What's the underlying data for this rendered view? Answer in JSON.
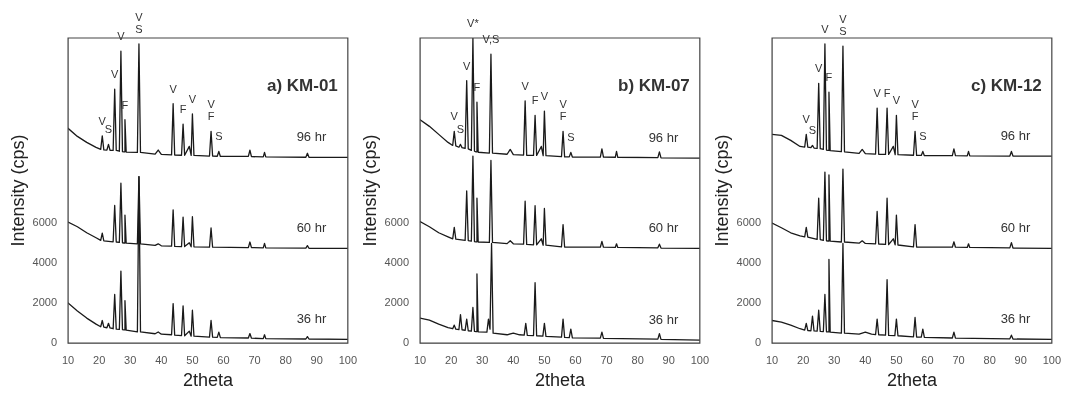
{
  "chart_data": [
    {
      "type": "line",
      "title": "a) KM-01",
      "xlabel": "2theta",
      "ylabel": "Intensity (cps)",
      "xlim": [
        10,
        100
      ],
      "xticks": [
        10,
        20,
        30,
        40,
        50,
        60,
        70,
        80,
        90,
        100
      ],
      "ylim": [
        0,
        15200
      ],
      "yticks": [
        0,
        2000,
        4000,
        6000
      ],
      "marker": "none",
      "series": [
        {
          "name": "36 hr",
          "color": "#1a1a1a",
          "x": [
            10,
            13,
            16,
            19,
            20.5,
            21,
            21.5,
            22.5,
            23,
            23.5,
            24.5,
            25,
            25.5,
            26.5,
            27,
            27.5,
            28,
            28.3,
            28.7,
            32.3,
            32.8,
            33.3,
            38,
            39,
            40,
            43.3,
            43.8,
            44.3,
            46.5,
            47,
            47.5,
            49,
            49.6,
            50,
            50.5,
            55.5,
            56,
            56.5,
            58,
            58.5,
            59,
            68,
            68.5,
            69,
            72.8,
            73.2,
            73.6,
            86.5,
            87,
            87.5,
            100
          ],
          "values": [
            2000,
            1600,
            1250,
            950,
            820,
            1130,
            800,
            770,
            990,
            760,
            720,
            2430,
            700,
            690,
            3590,
            680,
            660,
            2120,
            650,
            560,
            8300,
            560,
            470,
            560,
            450,
            420,
            1970,
            400,
            380,
            1860,
            370,
            600,
            350,
            1640,
            350,
            300,
            1130,
            300,
            290,
            550,
            280,
            260,
            480,
            250,
            230,
            420,
            230,
            210,
            330,
            210,
            190
          ]
        },
        {
          "name": "60 hr",
          "color": "#1a1a1a",
          "x": [
            10,
            13,
            16,
            19,
            20.5,
            21,
            21.5,
            24.5,
            25,
            25.5,
            26.5,
            27,
            27.5,
            28,
            28.3,
            28.7,
            32.3,
            32.8,
            33.3,
            38,
            39,
            40,
            43.3,
            43.8,
            44.3,
            46.5,
            47,
            47.5,
            49,
            49.6,
            50,
            50.5,
            55.5,
            56,
            56.5,
            68,
            68.5,
            69,
            72.8,
            73.2,
            73.6,
            86.5,
            87,
            87.5,
            100
          ],
          "values": [
            6030,
            5800,
            5500,
            5250,
            5120,
            5480,
            5100,
            5050,
            6860,
            5040,
            5020,
            7970,
            5000,
            4990,
            6380,
            4980,
            4950,
            8300,
            4950,
            4870,
            4950,
            4850,
            4830,
            6640,
            4820,
            4810,
            6280,
            4810,
            5000,
            4800,
            6300,
            4800,
            4780,
            5740,
            4780,
            4760,
            5040,
            4760,
            4750,
            4970,
            4750,
            4740,
            4860,
            4730,
            4720
          ]
        },
        {
          "name": "96 hr",
          "color": "#1a1a1a",
          "x": [
            10,
            13,
            16,
            19,
            20.5,
            21,
            21.5,
            22.5,
            23,
            23.5,
            24.5,
            25,
            25.5,
            26.5,
            27,
            27.5,
            28,
            28.3,
            28.7,
            32.3,
            32.8,
            33.3,
            38,
            39,
            40,
            43.3,
            43.8,
            44.3,
            46.5,
            47,
            47.5,
            49,
            49.6,
            50,
            50.5,
            55.5,
            56,
            56.5,
            58,
            58.5,
            59,
            68,
            68.5,
            69,
            72.8,
            73.2,
            73.6,
            86.5,
            87,
            87.5,
            100
          ],
          "values": [
            10700,
            10300,
            10000,
            9750,
            9650,
            10330,
            9630,
            9620,
            9900,
            9610,
            9600,
            12650,
            9600,
            9560,
            14540,
            9540,
            9530,
            11130,
            9520,
            9500,
            14900,
            9500,
            9420,
            9620,
            9400,
            9380,
            11930,
            9370,
            9360,
            10910,
            9360,
            9800,
            9350,
            11420,
            9350,
            9320,
            10550,
            9320,
            9310,
            9550,
            9300,
            9300,
            9610,
            9290,
            9280,
            9500,
            9280,
            9260,
            9460,
            9260,
            9250
          ]
        }
      ],
      "annotations": [
        {
          "text": "V",
          "x": 21,
          "y": 10330
        },
        {
          "text": "S",
          "x": 23,
          "y": 9900
        },
        {
          "text": "V",
          "x": 25,
          "y": 12650
        },
        {
          "text": "V",
          "x": 27,
          "y": 14540
        },
        {
          "text": "F",
          "x": 28.3,
          "y": 11130
        },
        {
          "text": "S",
          "x": 32.8,
          "y": 14900
        },
        {
          "text": "V",
          "x": 32.8,
          "y": 14900
        },
        {
          "text": "V",
          "x": 43.8,
          "y": 11930
        },
        {
          "text": "F",
          "x": 47,
          "y": 10910
        },
        {
          "text": "V",
          "x": 50,
          "y": 11420
        },
        {
          "text": "F",
          "x": 56,
          "y": 10550
        },
        {
          "text": "V",
          "x": 56,
          "y": 10550
        },
        {
          "text": "S",
          "x": 58.5,
          "y": 9550
        }
      ]
    },
    {
      "type": "line",
      "title": "b) KM-07",
      "xlabel": "2theta",
      "ylabel": "Intensity (cps)",
      "xlim": [
        10,
        100
      ],
      "xticks": [
        10,
        20,
        30,
        40,
        50,
        60,
        70,
        80,
        90,
        100
      ],
      "ylim": [
        0,
        15200
      ],
      "yticks": [
        0,
        2000,
        4000,
        6000
      ],
      "marker": "none",
      "series": [
        {
          "name": "36 hr",
          "color": "#1a1a1a",
          "x": [
            10,
            13,
            16,
            19,
            20.5,
            21,
            21.5,
            22.5,
            23,
            23.5,
            24.5,
            25,
            25.5,
            26.5,
            27,
            27.5,
            28,
            28.3,
            28.7,
            31.5,
            32,
            32.5,
            33,
            33.5,
            38,
            40,
            42,
            43.5,
            44,
            44.5,
            46.5,
            47,
            47.5,
            49.5,
            50,
            50.5,
            55.5,
            56,
            56.5,
            58,
            58.5,
            59,
            68,
            68.5,
            69,
            86.5,
            87,
            87.5,
            100
          ],
          "values": [
            1250,
            1150,
            950,
            780,
            720,
            900,
            700,
            680,
            1420,
            670,
            640,
            1200,
            620,
            600,
            1780,
            590,
            580,
            3450,
            560,
            550,
            1200,
            700,
            4970,
            500,
            420,
            500,
            420,
            400,
            990,
            390,
            380,
            3010,
            370,
            350,
            990,
            340,
            300,
            1200,
            290,
            280,
            700,
            270,
            250,
            550,
            240,
            200,
            480,
            190,
            150
          ]
        },
        {
          "name": "60 hr",
          "color": "#1a1a1a",
          "x": [
            10,
            13,
            16,
            19,
            20.5,
            21,
            21.5,
            24.5,
            25,
            25.5,
            26.5,
            27,
            27.5,
            28,
            28.3,
            28.7,
            32.3,
            32.8,
            33.3,
            38,
            39,
            40,
            43.3,
            43.8,
            44.3,
            46.5,
            47,
            47.5,
            49,
            49.6,
            50,
            50.5,
            55.5,
            56,
            56.5,
            68,
            68.5,
            69,
            72.8,
            73.2,
            73.6,
            86.5,
            87,
            87.5,
            100
          ],
          "values": [
            6060,
            5800,
            5500,
            5300,
            5200,
            5770,
            5180,
            5120,
            7580,
            5110,
            5080,
            9320,
            5060,
            5050,
            7220,
            5040,
            5020,
            9100,
            5020,
            4960,
            5100,
            4950,
            4930,
            7070,
            4920,
            4900,
            6850,
            4900,
            5200,
            4880,
            6710,
            4880,
            4800,
            5910,
            4790,
            4780,
            5070,
            4780,
            4770,
            4950,
            4770,
            4750,
            4930,
            4740,
            4720
          ]
        },
        {
          "name": "96 hr",
          "color": "#1a1a1a",
          "x": [
            10,
            13,
            16,
            19,
            20.5,
            21,
            21.5,
            22.5,
            23,
            23.5,
            24.5,
            25,
            25.5,
            26.5,
            27,
            27.5,
            28,
            28.3,
            28.7,
            32.3,
            32.8,
            33.3,
            38,
            39,
            40,
            43.3,
            43.8,
            44.3,
            46.5,
            47,
            47.5,
            49,
            49.6,
            50,
            50.5,
            55.5,
            56,
            56.5,
            58,
            58.5,
            59,
            68,
            68.5,
            69,
            72.8,
            73.2,
            73.6,
            86.5,
            87,
            87.5,
            100
          ],
          "values": [
            11130,
            10800,
            10400,
            10000,
            9850,
            10550,
            9830,
            9760,
            9900,
            9740,
            9700,
            13080,
            9680,
            9600,
            15200,
            9560,
            9530,
            12000,
            9510,
            9470,
            14390,
            9470,
            9410,
            9650,
            9390,
            9370,
            12070,
            9360,
            9350,
            11350,
            9350,
            9800,
            9340,
            11560,
            9340,
            9290,
            10550,
            9280,
            9280,
            9500,
            9270,
            9270,
            9680,
            9270,
            9260,
            9550,
            9260,
            9240,
            9530,
            9230,
            9220
          ]
        }
      ],
      "annotations": [
        {
          "text": "V",
          "x": 21,
          "y": 10550
        },
        {
          "text": "S",
          "x": 23,
          "y": 9900
        },
        {
          "text": "V",
          "x": 25,
          "y": 13080
        },
        {
          "text": "V*",
          "x": 27,
          "y": 15200
        },
        {
          "text": "F",
          "x": 28.3,
          "y": 12000
        },
        {
          "text": "V,S",
          "x": 32.8,
          "y": 14390
        },
        {
          "text": "V",
          "x": 43.8,
          "y": 12070
        },
        {
          "text": "F",
          "x": 47,
          "y": 11350
        },
        {
          "text": "V",
          "x": 50,
          "y": 11560
        },
        {
          "text": "F",
          "x": 56,
          "y": 10550
        },
        {
          "text": "V",
          "x": 56,
          "y": 10550
        },
        {
          "text": "S",
          "x": 58.5,
          "y": 9500
        }
      ]
    },
    {
      "type": "line",
      "title": "c) KM-12",
      "xlabel": "2theta",
      "ylabel": "Intensity (cps)",
      "xlim": [
        10,
        100
      ],
      "xticks": [
        10,
        20,
        30,
        40,
        50,
        60,
        70,
        80,
        90,
        100
      ],
      "ylim": [
        0,
        15200
      ],
      "yticks": [
        0,
        2000,
        4000,
        6000
      ],
      "marker": "none",
      "series": [
        {
          "name": "36 hr",
          "color": "#1a1a1a",
          "x": [
            10,
            13,
            16,
            19,
            20.5,
            21,
            21.5,
            22.5,
            23,
            23.5,
            24.5,
            25,
            25.5,
            26.5,
            27,
            27.5,
            28,
            28.3,
            28.7,
            32.3,
            32.8,
            33.3,
            38,
            40,
            42,
            43.3,
            43.8,
            44.3,
            46.5,
            47,
            47.5,
            49.5,
            50,
            50.5,
            55.5,
            56,
            56.5,
            58,
            58.5,
            59,
            68,
            68.5,
            69,
            86.5,
            87,
            87.5,
            100
          ],
          "values": [
            1130,
            1050,
            900,
            720,
            650,
            990,
            630,
            620,
            1350,
            610,
            600,
            1640,
            590,
            580,
            2430,
            570,
            560,
            4170,
            550,
            500,
            4970,
            500,
            450,
            550,
            450,
            430,
            1200,
            420,
            400,
            3160,
            390,
            380,
            1200,
            370,
            320,
            1280,
            310,
            300,
            700,
            290,
            260,
            550,
            250,
            220,
            400,
            210,
            190
          ]
        },
        {
          "name": "60 hr",
          "color": "#1a1a1a",
          "x": [
            10,
            13,
            16,
            19,
            20.5,
            21,
            21.5,
            24.5,
            25,
            25.5,
            26.5,
            27,
            27.5,
            28,
            28.3,
            28.7,
            32.3,
            32.8,
            33.3,
            38,
            39,
            40,
            43.3,
            43.8,
            44.3,
            46.5,
            47,
            47.5,
            49,
            49.6,
            50,
            50.5,
            55.5,
            56,
            56.5,
            68,
            68.5,
            69,
            72.8,
            73.2,
            73.6,
            86.5,
            87,
            87.5,
            100
          ],
          "values": [
            5980,
            5750,
            5500,
            5350,
            5300,
            5770,
            5280,
            5170,
            7220,
            5160,
            5120,
            8520,
            5100,
            5090,
            8380,
            5080,
            5040,
            8670,
            5040,
            4980,
            5100,
            4970,
            4950,
            6560,
            4940,
            4920,
            7220,
            4910,
            5200,
            4900,
            6380,
            4890,
            4800,
            5910,
            4790,
            4780,
            5050,
            4780,
            4770,
            4950,
            4770,
            4750,
            5010,
            4740,
            4720
          ]
        },
        {
          "name": "96 hr",
          "color": "#1a1a1a",
          "x": [
            10,
            13,
            16,
            19,
            20.5,
            21,
            21.5,
            22.5,
            23,
            23.5,
            24.5,
            25,
            25.5,
            26.5,
            27,
            27.5,
            28,
            28.3,
            28.7,
            32.3,
            32.8,
            33.3,
            38,
            39,
            40,
            43.3,
            43.8,
            44.3,
            46.5,
            47,
            47.5,
            49,
            49.6,
            50,
            50.5,
            55.5,
            56,
            56.5,
            58,
            58.5,
            59,
            68,
            68.5,
            69,
            72.8,
            73.2,
            73.6,
            86.5,
            87,
            87.5,
            100
          ],
          "values": [
            10400,
            10350,
            10100,
            9800,
            9770,
            10400,
            9760,
            9740,
            9850,
            9720,
            9700,
            12940,
            9690,
            9650,
            14900,
            9620,
            9600,
            12500,
            9590,
            9540,
            14800,
            9530,
            9450,
            9650,
            9440,
            9420,
            11710,
            9410,
            9400,
            11710,
            9400,
            9800,
            9390,
            11350,
            9390,
            9360,
            10550,
            9350,
            9350,
            9550,
            9340,
            9340,
            9680,
            9340,
            9330,
            9550,
            9330,
            9320,
            9550,
            9320,
            9320
          ]
        }
      ],
      "annotations": [
        {
          "text": "V",
          "x": 21,
          "y": 10400
        },
        {
          "text": "S",
          "x": 23,
          "y": 9850
        },
        {
          "text": "V",
          "x": 25,
          "y": 12940
        },
        {
          "text": "V",
          "x": 27,
          "y": 14900
        },
        {
          "text": "F",
          "x": 28.3,
          "y": 12500
        },
        {
          "text": "S",
          "x": 32.8,
          "y": 14800
        },
        {
          "text": "V",
          "x": 32.8,
          "y": 14800
        },
        {
          "text": "V",
          "x": 43.8,
          "y": 11710
        },
        {
          "text": "F",
          "x": 47,
          "y": 11710
        },
        {
          "text": "V",
          "x": 50,
          "y": 11350
        },
        {
          "text": "F",
          "x": 56,
          "y": 10550
        },
        {
          "text": "V",
          "x": 56,
          "y": 10550
        },
        {
          "text": "S",
          "x": 58.5,
          "y": 9550
        }
      ]
    }
  ]
}
